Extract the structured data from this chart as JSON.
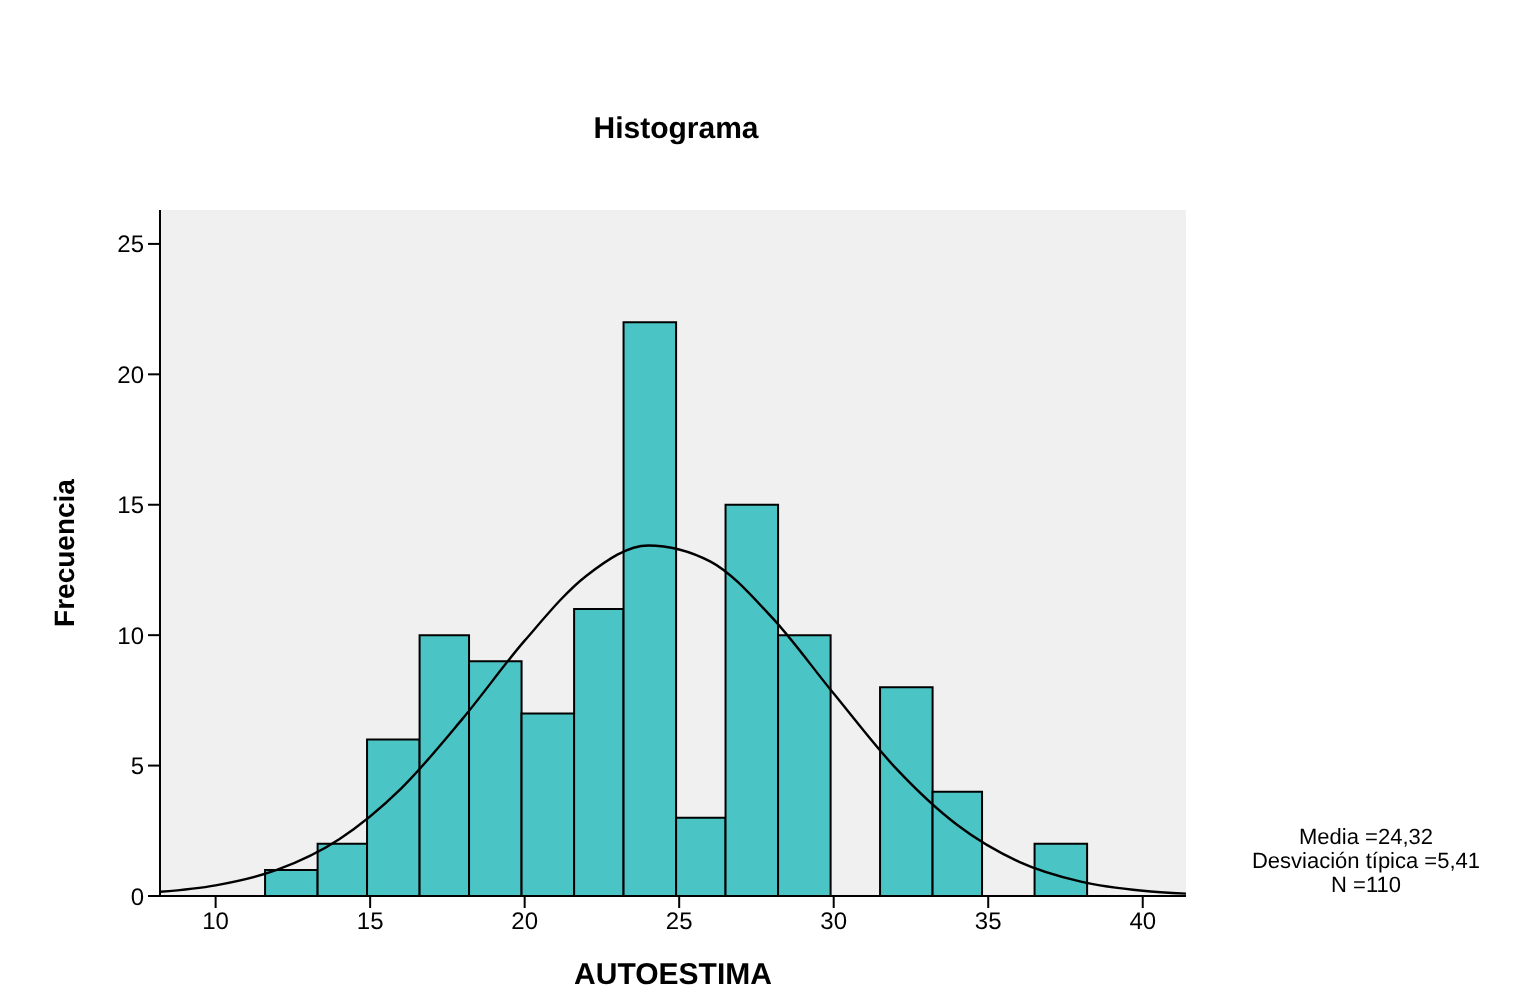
{
  "chart_data": {
    "type": "histogram",
    "title": "Histograma",
    "xlabel": "AUTOESTIMA",
    "ylabel": "Frecuencia",
    "bins": [
      11.6,
      13.3,
      14.9,
      16.6,
      18.2,
      19.9,
      21.6,
      23.2,
      24.9,
      26.5,
      28.2,
      29.9,
      31.5,
      33.2,
      34.8,
      36.5,
      38.2
    ],
    "values": [
      1,
      2,
      6,
      10,
      9,
      7,
      11,
      22,
      3,
      15,
      10,
      0,
      8,
      4,
      0,
      2
    ],
    "color": "#4bc4c6",
    "series": [
      {
        "type": "line",
        "color": "#000000",
        "x": [
          8.2,
          10,
          12,
          14,
          16,
          18,
          20,
          22,
          24,
          26,
          28,
          30,
          32,
          34,
          36,
          38,
          40,
          41.4
        ],
        "values": [
          0.16,
          0.41,
          1.01,
          2.18,
          4.12,
          6.81,
          9.79,
          12.28,
          13.44,
          12.83,
          10.68,
          7.76,
          4.91,
          2.72,
          1.31,
          0.55,
          0.2,
          0.09
        ]
      }
    ],
    "xlim": [
      8.2,
      41.4
    ],
    "xticks": [
      10,
      15,
      20,
      25,
      30,
      35,
      40
    ],
    "ylim": [
      0,
      26.3
    ],
    "yticks": [
      0,
      5,
      10,
      15,
      20,
      25
    ],
    "grid": false,
    "annotations": [
      "Media =24,32",
      "Desviación típica =5,41",
      "N =110"
    ]
  }
}
